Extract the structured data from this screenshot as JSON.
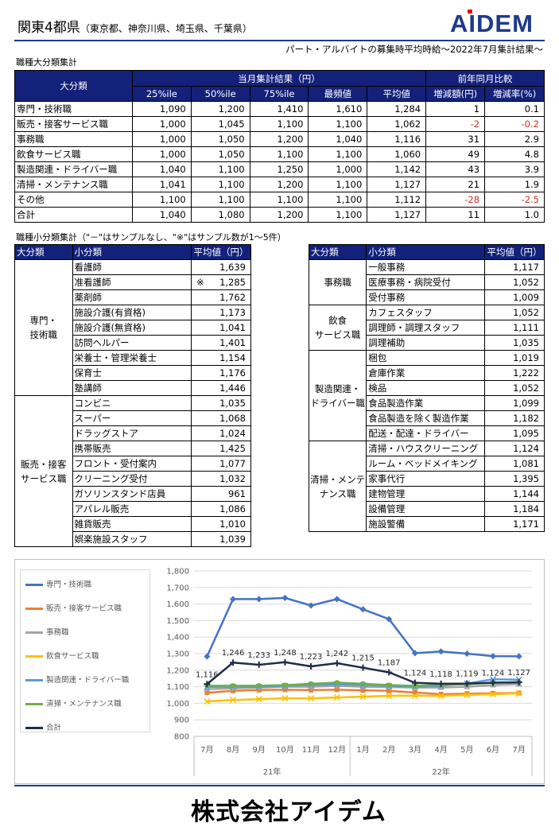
{
  "header": {
    "title_main": "関東4都県",
    "title_paren": "（東京都、神奈川県、埼玉県、千葉県）",
    "logo_text": "AiDEM",
    "subtitle": "パート・アルバイトの募集時平均時給～2022年7月集計結果～"
  },
  "major": {
    "section_label": "職種大分類集計",
    "col_category": "大分類",
    "group_current": "当月集計結果（円）",
    "group_yoy": "前年同月比較",
    "cols": [
      "25%ile",
      "50%ile",
      "75%ile",
      "最頻値",
      "平均値",
      "増減額(円)",
      "増減率(%)"
    ],
    "rows": [
      {
        "name": "専門・技術職",
        "p25": "1,090",
        "p50": "1,200",
        "p75": "1,410",
        "mode": "1,610",
        "avg": "1,284",
        "diff": "1",
        "rate": "0.1",
        "neg": false
      },
      {
        "name": "販売・接客サービス職",
        "p25": "1,000",
        "p50": "1,045",
        "p75": "1,100",
        "mode": "1,100",
        "avg": "1,062",
        "diff": "-2",
        "rate": "-0.2",
        "neg": true
      },
      {
        "name": "事務職",
        "p25": "1,000",
        "p50": "1,050",
        "p75": "1,200",
        "mode": "1,040",
        "avg": "1,116",
        "diff": "31",
        "rate": "2.9",
        "neg": false
      },
      {
        "name": "飲食サービス職",
        "p25": "1,000",
        "p50": "1,050",
        "p75": "1,100",
        "mode": "1,100",
        "avg": "1,060",
        "diff": "49",
        "rate": "4.8",
        "neg": false
      },
      {
        "name": "製造関連・ドライバー職",
        "p25": "1,040",
        "p50": "1,100",
        "p75": "1,250",
        "mode": "1,000",
        "avg": "1,142",
        "diff": "43",
        "rate": "3.9",
        "neg": false
      },
      {
        "name": "清掃・メンテナンス職",
        "p25": "1,041",
        "p50": "1,100",
        "p75": "1,200",
        "mode": "1,100",
        "avg": "1,127",
        "diff": "21",
        "rate": "1.9",
        "neg": false
      },
      {
        "name": "その他",
        "p25": "1,100",
        "p50": "1,100",
        "p75": "1,100",
        "mode": "1,100",
        "avg": "1,112",
        "diff": "-28",
        "rate": "-2.5",
        "neg": true
      },
      {
        "name": "合計",
        "p25": "1,040",
        "p50": "1,080",
        "p75": "1,200",
        "mode": "1,100",
        "avg": "1,127",
        "diff": "11",
        "rate": "1.0",
        "neg": false
      }
    ]
  },
  "minor": {
    "section_label": "職種小分類集計（\"－\"はサンプルなし、\"※\"はサンプル数が1～5件）",
    "col_major": "大分類",
    "col_minor": "小分類",
    "col_avg": "平均値（円）",
    "left_groups": [
      {
        "name": "専門・\n技術職",
        "items": [
          {
            "name": "看護師",
            "mark": "",
            "avg": "1,639"
          },
          {
            "name": "准看護師",
            "mark": "※",
            "avg": "1,285"
          },
          {
            "name": "薬剤師",
            "mark": "",
            "avg": "1,762"
          },
          {
            "name": "施設介護(有資格)",
            "mark": "",
            "avg": "1,173"
          },
          {
            "name": "施設介護(無資格)",
            "mark": "",
            "avg": "1,041"
          },
          {
            "name": "訪問ヘルパー",
            "mark": "",
            "avg": "1,401"
          },
          {
            "name": "栄養士・管理栄養士",
            "mark": "",
            "avg": "1,154"
          },
          {
            "name": "保育士",
            "mark": "",
            "avg": "1,176"
          },
          {
            "name": "塾講師",
            "mark": "",
            "avg": "1,446"
          }
        ]
      },
      {
        "name": "販売・接客\nサービス職",
        "items": [
          {
            "name": "コンビニ",
            "mark": "",
            "avg": "1,035"
          },
          {
            "name": "スーパー",
            "mark": "",
            "avg": "1,068"
          },
          {
            "name": "ドラッグストア",
            "mark": "",
            "avg": "1,024"
          },
          {
            "name": "携帯販売",
            "mark": "",
            "avg": "1,425"
          },
          {
            "name": "フロント・受付案内",
            "mark": "",
            "avg": "1,077"
          },
          {
            "name": "クリーニング受付",
            "mark": "",
            "avg": "1,032"
          },
          {
            "name": "ガソリンスタンド店員",
            "mark": "",
            "avg": "961"
          },
          {
            "name": "アパレル販売",
            "mark": "",
            "avg": "1,086"
          },
          {
            "name": "雑貨販売",
            "mark": "",
            "avg": "1,010"
          },
          {
            "name": "娯楽施設スタッフ",
            "mark": "",
            "avg": "1,039"
          }
        ]
      }
    ],
    "right_groups": [
      {
        "name": "事務職",
        "items": [
          {
            "name": "一般事務",
            "mark": "",
            "avg": "1,117"
          },
          {
            "name": "医療事務・病院受付",
            "mark": "",
            "avg": "1,052"
          },
          {
            "name": "受付事務",
            "mark": "",
            "avg": "1,009"
          }
        ]
      },
      {
        "name": "飲食\nサービス職",
        "items": [
          {
            "name": "カフェスタッフ",
            "mark": "",
            "avg": "1,052"
          },
          {
            "name": "調理師・調理スタッフ",
            "mark": "",
            "avg": "1,111"
          },
          {
            "name": "調理補助",
            "mark": "",
            "avg": "1,035"
          }
        ]
      },
      {
        "name": "製造関連・\nドライバー職",
        "items": [
          {
            "name": "梱包",
            "mark": "",
            "avg": "1,019"
          },
          {
            "name": "倉庫作業",
            "mark": "",
            "avg": "1,222"
          },
          {
            "name": "検品",
            "mark": "",
            "avg": "1,052"
          },
          {
            "name": "食品製造作業",
            "mark": "",
            "avg": "1,099"
          },
          {
            "name": "食品製造を除く製造作業",
            "mark": "",
            "avg": "1,182"
          },
          {
            "name": "配送・配達・ドライバー",
            "mark": "",
            "avg": "1,095"
          }
        ]
      },
      {
        "name": "清掃・メンテ\nナンス職",
        "items": [
          {
            "name": "清掃・ハウスクリーニング",
            "mark": "",
            "avg": "1,124"
          },
          {
            "name": "ルーム・ベッドメイキング",
            "mark": "",
            "avg": "1,081"
          },
          {
            "name": "家事代行",
            "mark": "",
            "avg": "1,395"
          },
          {
            "name": "建物管理",
            "mark": "",
            "avg": "1,144"
          },
          {
            "name": "設備管理",
            "mark": "",
            "avg": "1,184"
          },
          {
            "name": "施設警備",
            "mark": "",
            "avg": "1,171"
          }
        ]
      }
    ]
  },
  "chart_data": {
    "type": "line",
    "title": "",
    "categories": [
      "7月",
      "8月",
      "9月",
      "10月",
      "11月",
      "12月",
      "1月",
      "2月",
      "3月",
      "4月",
      "5月",
      "6月",
      "7月"
    ],
    "year_labels": [
      {
        "label": "21年",
        "from": 0,
        "to": 5
      },
      {
        "label": "22年",
        "from": 6,
        "to": 12
      }
    ],
    "ylim": [
      800,
      1800
    ],
    "yticks": [
      "800",
      "900",
      "1,000",
      "1,100",
      "1,200",
      "1,300",
      "1,400",
      "1,500",
      "1,600",
      "1,700",
      "1,800"
    ],
    "series": [
      {
        "name": "専門・技術職",
        "color": "#4472c4",
        "marker": "diamond",
        "values": [
          1283,
          1630,
          1630,
          1637,
          1591,
          1630,
          1568,
          1509,
          1303,
          1313,
          1300,
          1285,
          1284
        ]
      },
      {
        "name": "販売・接客サービス職",
        "color": "#ed7d31",
        "marker": "square",
        "values": [
          1064,
          1075,
          1080,
          1082,
          1080,
          1082,
          1078,
          1075,
          1065,
          1055,
          1058,
          1060,
          1062
        ]
      },
      {
        "name": "事務職",
        "color": "#a5a5a5",
        "marker": "triangle",
        "values": [
          1085,
          1090,
          1095,
          1100,
          1100,
          1105,
          1100,
          1098,
          1095,
          1095,
          1100,
          1110,
          1116
        ]
      },
      {
        "name": "飲食サービス職",
        "color": "#ffc000",
        "marker": "x",
        "values": [
          1011,
          1020,
          1025,
          1030,
          1030,
          1035,
          1040,
          1045,
          1045,
          1045,
          1050,
          1055,
          1060
        ]
      },
      {
        "name": "製造関連・ドライバー職",
        "color": "#5b9bd5",
        "marker": "star",
        "values": [
          1099,
          1100,
          1100,
          1105,
          1110,
          1115,
          1110,
          1105,
          1100,
          1105,
          1120,
          1145,
          1142
        ]
      },
      {
        "name": "清掃・メンテナンス職",
        "color": "#70ad47",
        "marker": "circle",
        "values": [
          1106,
          1106,
          1106,
          1110,
          1118,
          1125,
          1118,
          1110,
          1105,
          1110,
          1115,
          1125,
          1127
        ]
      },
      {
        "name": "合計",
        "color": "#1f2d4a",
        "marker": "plus",
        "values": [
          1116,
          1246,
          1233,
          1248,
          1223,
          1242,
          1215,
          1187,
          1124,
          1118,
          1119,
          1124,
          1127
        ]
      }
    ],
    "data_labels": [
      "1,116",
      "1,246",
      "1,233",
      "1,248",
      "1,223",
      "1,242",
      "1,215",
      "1,187",
      "1,124",
      "1,118",
      "1,119",
      "1,124",
      "1,127"
    ],
    "legend_position": "left"
  },
  "footer": {
    "company": "株式会社アイデム"
  }
}
